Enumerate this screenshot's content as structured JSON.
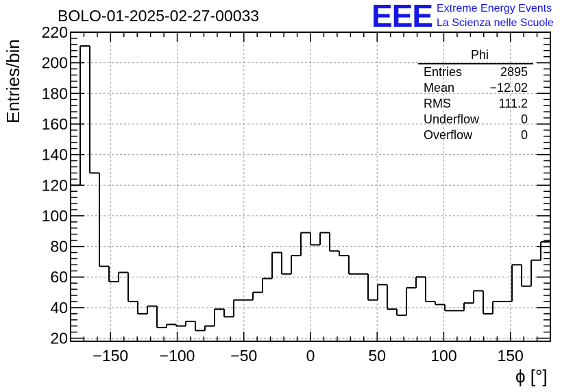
{
  "header": {
    "title": "BOLO-01-2025-02-27-00033",
    "logo_text": "EEE",
    "logo_line1": "Extreme Energy Events",
    "logo_line2": "La Scienza nelle Scuole",
    "logo_color": "#1616e6"
  },
  "stats_box": {
    "title": "Phi",
    "rows": [
      {
        "label": "Entries",
        "value": "2895"
      },
      {
        "label": "Mean",
        "value": "−12.02"
      },
      {
        "label": "RMS",
        "value": "111.2"
      },
      {
        "label": "Underflow",
        "value": "0"
      },
      {
        "label": "Overflow",
        "value": "0"
      }
    ]
  },
  "chart_data": {
    "type": "bar",
    "histogram": true,
    "xlabel": "ϕ [°]",
    "ylabel": "Entries/bin",
    "xlim": [
      -180,
      180
    ],
    "ylim": [
      18,
      220
    ],
    "bin_width": 7.2,
    "x_ticks": [
      -150,
      -100,
      -50,
      0,
      50,
      100,
      150
    ],
    "y_ticks": [
      20,
      40,
      60,
      80,
      100,
      120,
      140,
      160,
      180,
      200,
      220
    ],
    "grid": true,
    "values": [
      120,
      211,
      128,
      67,
      57,
      63,
      44,
      36,
      41,
      27,
      29,
      28,
      31,
      25,
      28,
      39,
      34,
      45,
      45,
      50,
      59,
      76,
      62,
      74,
      89,
      81,
      89,
      77,
      74,
      62,
      62,
      45,
      55,
      39,
      35,
      53,
      60,
      44,
      42,
      38,
      38,
      43,
      51,
      36,
      44,
      44,
      68,
      54,
      71,
      83
    ]
  }
}
